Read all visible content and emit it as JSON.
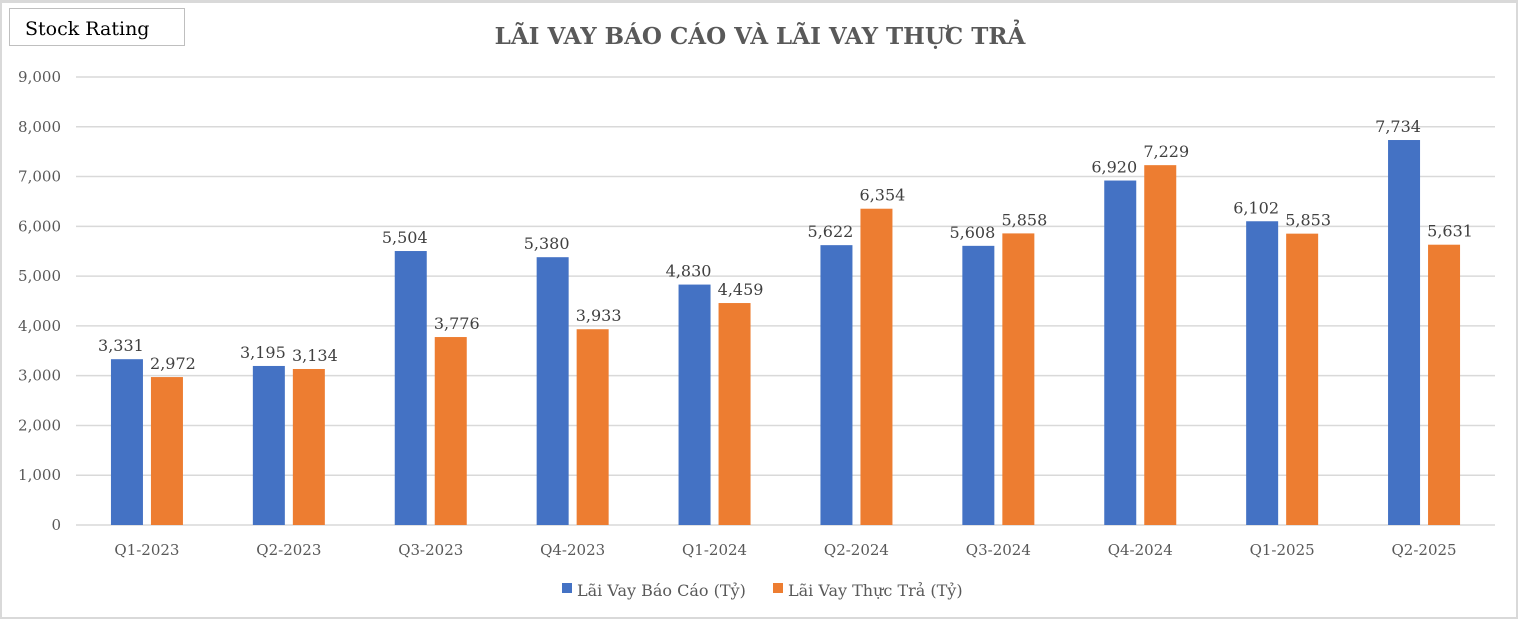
{
  "badge": "Stock Rating",
  "chart_data": {
    "type": "bar",
    "title": "LÃI VAY BÁO CÁO VÀ LÃI VAY THỰC TRẢ",
    "xlabel": "",
    "ylabel": "",
    "ylim": [
      0,
      9000
    ],
    "yticks": [
      0,
      1000,
      2000,
      3000,
      4000,
      5000,
      6000,
      7000,
      8000,
      9000
    ],
    "ytick_labels": [
      "0",
      "1,000",
      "2,000",
      "3,000",
      "4,000",
      "5,000",
      "6,000",
      "7,000",
      "8,000",
      "9,000"
    ],
    "grid": true,
    "legend_position": "bottom",
    "categories": [
      "Q1-2023",
      "Q2-2023",
      "Q3-2023",
      "Q4-2023",
      "Q1-2024",
      "Q2-2024",
      "Q3-2024",
      "Q4-2024",
      "Q1-2025",
      "Q2-2025"
    ],
    "series": [
      {
        "name": "Lãi Vay Báo Cáo (Tỷ)",
        "color": "#4472c4",
        "values": [
          3331,
          3195,
          5504,
          5380,
          4830,
          5622,
          5608,
          6920,
          6102,
          7734
        ],
        "labels": [
          "3,331",
          "3,195",
          "5,504",
          "5,380",
          "4,830",
          "5,622",
          "5,608",
          "6,920",
          "6,102",
          "7,734"
        ]
      },
      {
        "name": "Lãi Vay Thực Trả (Tỷ)",
        "color": "#ed7d31",
        "values": [
          2972,
          3134,
          3776,
          3933,
          4459,
          6354,
          5858,
          7229,
          5853,
          5631
        ],
        "labels": [
          "2,972",
          "3,134",
          "3,776",
          "3,933",
          "4,459",
          "6,354",
          "5,858",
          "7,229",
          "5,853",
          "5,631"
        ]
      }
    ]
  }
}
